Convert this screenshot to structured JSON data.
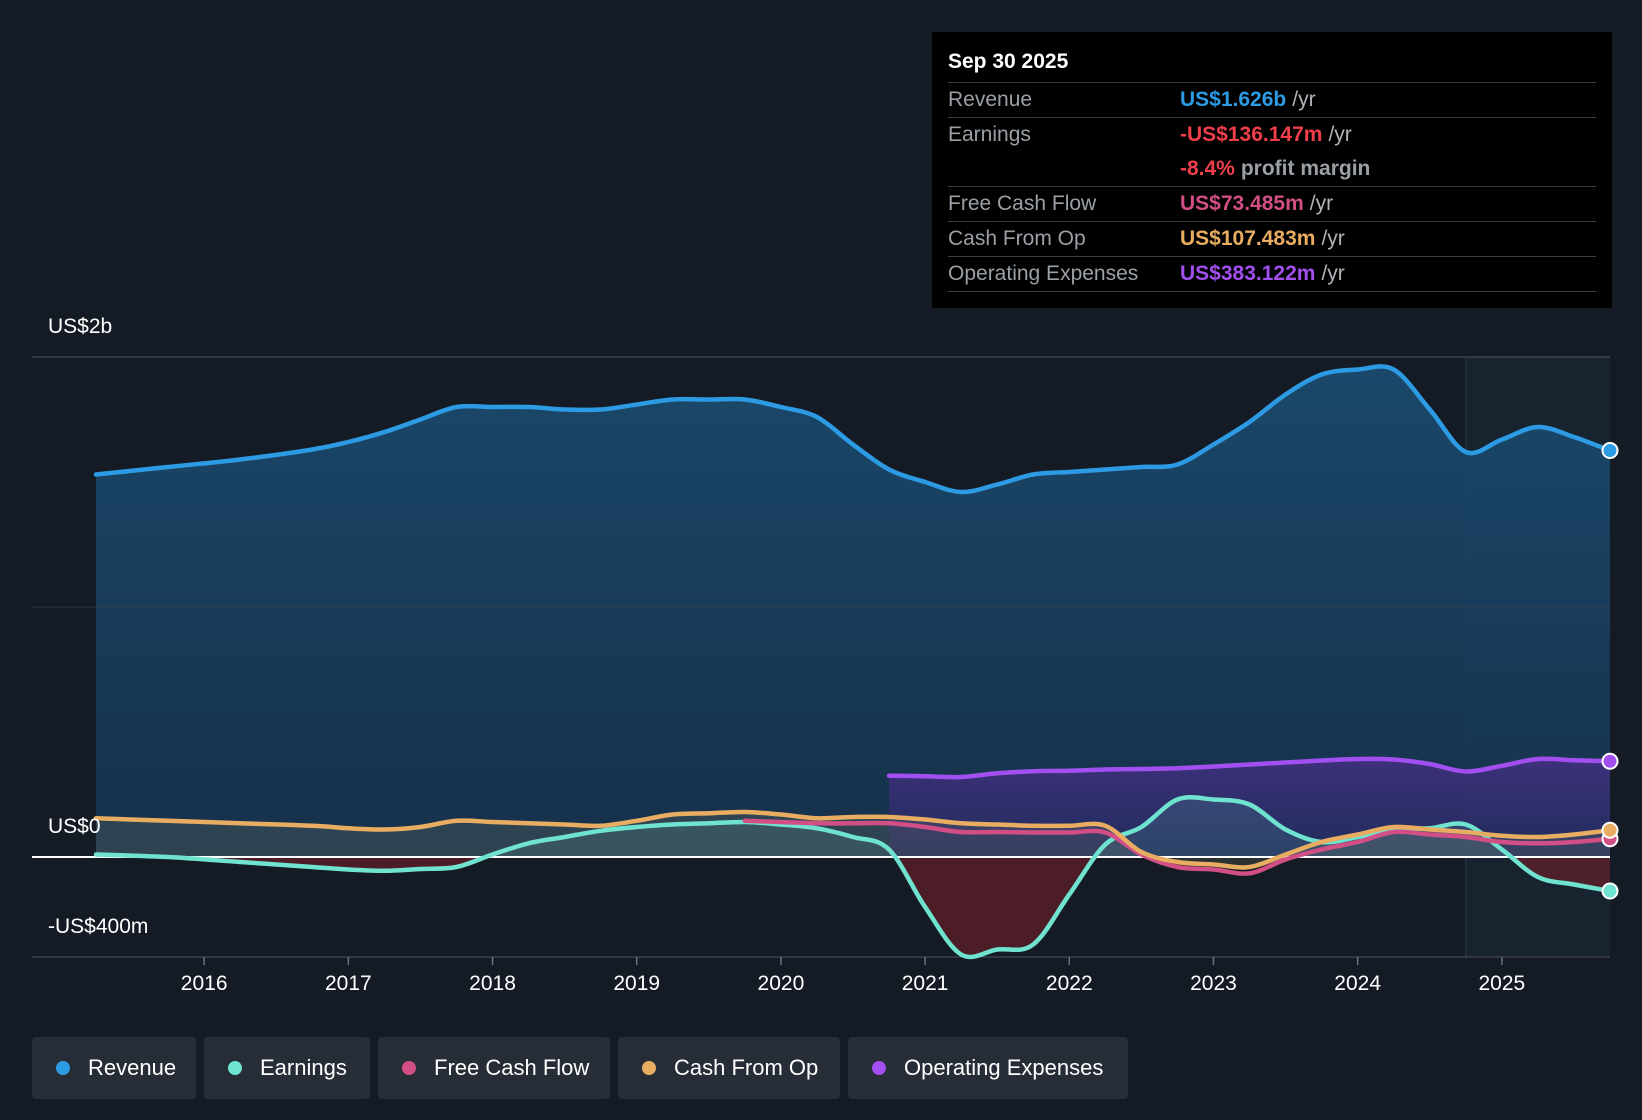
{
  "colors": {
    "revenue": "#2d9be4",
    "earnings": "#6fe3cf",
    "fcf": "#d24f86",
    "cfo": "#e9ad62",
    "opex": "#a24ff0",
    "negative": "#f03e4a"
  },
  "tooltip": {
    "date": "Sep 30 2025",
    "rows": [
      {
        "label": "Revenue",
        "value": "US$1.626b",
        "unit": "/yr"
      },
      {
        "label": "Earnings",
        "value": "-US$136.147m",
        "unit": "/yr"
      },
      {
        "label": "",
        "value": "-8.4%",
        "unit": "profit margin"
      },
      {
        "label": "Free Cash Flow",
        "value": "US$73.485m",
        "unit": "/yr"
      },
      {
        "label": "Cash From Op",
        "value": "US$107.483m",
        "unit": "/yr"
      },
      {
        "label": "Operating Expenses",
        "value": "US$383.122m",
        "unit": "/yr"
      }
    ]
  },
  "legend": [
    {
      "label": "Revenue",
      "icon": "revenue-dot-icon"
    },
    {
      "label": "Earnings",
      "icon": "earnings-dot-icon"
    },
    {
      "label": "Free Cash Flow",
      "icon": "fcf-dot-icon"
    },
    {
      "label": "Cash From Op",
      "icon": "cfo-dot-icon"
    },
    {
      "label": "Operating Expenses",
      "icon": "opex-dot-icon"
    }
  ],
  "chart_data": {
    "type": "line",
    "title": "",
    "y_unit": "US$ millions",
    "ylim": [
      -400,
      2000
    ],
    "xlim": [
      2015.25,
      2025.75
    ],
    "y_labels": [
      {
        "value": 2000,
        "text": "US$2b"
      },
      {
        "value": 0,
        "text": "US$0"
      },
      {
        "value": -400,
        "text": "-US$400m"
      }
    ],
    "x_ticks": [
      {
        "value": 2016,
        "text": "2016"
      },
      {
        "value": 2017,
        "text": "2017"
      },
      {
        "value": 2018,
        "text": "2018"
      },
      {
        "value": 2019,
        "text": "2019"
      },
      {
        "value": 2020,
        "text": "2020"
      },
      {
        "value": 2021,
        "text": "2021"
      },
      {
        "value": 2022,
        "text": "2022"
      },
      {
        "value": 2023,
        "text": "2023"
      },
      {
        "value": 2024,
        "text": "2024"
      },
      {
        "value": 2025,
        "text": "2025"
      }
    ],
    "highlight_start": 2024.75,
    "series": [
      {
        "name": "Revenue",
        "key": "revenue",
        "x": [
          2015.25,
          2015.75,
          2016.25,
          2016.75,
          2017.0,
          2017.25,
          2017.5,
          2017.75,
          2018.0,
          2018.25,
          2018.5,
          2018.75,
          2019.0,
          2019.25,
          2019.5,
          2019.75,
          2020.0,
          2020.25,
          2020.5,
          2020.75,
          2021.0,
          2021.25,
          2021.5,
          2021.75,
          2022.0,
          2022.25,
          2022.5,
          2022.75,
          2023.0,
          2023.25,
          2023.5,
          2023.75,
          2024.0,
          2024.25,
          2024.5,
          2024.75,
          2025.0,
          2025.25,
          2025.5,
          2025.75
        ],
        "values": [
          1530,
          1560,
          1590,
          1630,
          1660,
          1700,
          1750,
          1800,
          1800,
          1800,
          1790,
          1790,
          1810,
          1830,
          1830,
          1830,
          1800,
          1760,
          1650,
          1550,
          1500,
          1460,
          1490,
          1530,
          1540,
          1550,
          1560,
          1570,
          1650,
          1740,
          1850,
          1930,
          1950,
          1950,
          1790,
          1620,
          1670,
          1720,
          1680,
          1626
        ]
      },
      {
        "name": "Operating Expenses",
        "key": "opex",
        "x": [
          2020.75,
          2021.0,
          2021.25,
          2021.5,
          2021.75,
          2022.0,
          2022.25,
          2022.5,
          2022.75,
          2023.0,
          2023.25,
          2023.5,
          2023.75,
          2024.0,
          2024.25,
          2024.5,
          2024.75,
          2025.0,
          2025.25,
          2025.5,
          2025.75
        ],
        "values": [
          325,
          323,
          320,
          335,
          343,
          345,
          350,
          352,
          355,
          362,
          370,
          378,
          386,
          392,
          390,
          372,
          342,
          365,
          392,
          387,
          383
        ]
      },
      {
        "name": "Earnings",
        "key": "earnings",
        "x": [
          2015.25,
          2015.75,
          2016.25,
          2016.75,
          2017.0,
          2017.25,
          2017.5,
          2017.75,
          2018.0,
          2018.25,
          2018.5,
          2018.75,
          2019.0,
          2019.25,
          2019.5,
          2019.75,
          2020.0,
          2020.25,
          2020.5,
          2020.75,
          2021.0,
          2021.25,
          2021.5,
          2021.75,
          2022.0,
          2022.25,
          2022.5,
          2022.75,
          2023.0,
          2023.25,
          2023.5,
          2023.75,
          2024.0,
          2024.25,
          2024.5,
          2024.75,
          2025.0,
          2025.25,
          2025.5,
          2025.75
        ],
        "values": [
          10,
          0,
          -20,
          -40,
          -50,
          -55,
          -48,
          -40,
          10,
          55,
          80,
          105,
          120,
          130,
          135,
          140,
          130,
          115,
          80,
          30,
          -200,
          -390,
          -370,
          -350,
          -150,
          50,
          120,
          230,
          230,
          210,
          110,
          60,
          80,
          110,
          115,
          130,
          30,
          -80,
          -110,
          -136
        ]
      },
      {
        "name": "Free Cash Flow",
        "key": "fcf",
        "x": [
          2019.75,
          2020.0,
          2020.25,
          2020.5,
          2020.75,
          2021.0,
          2021.25,
          2021.5,
          2021.75,
          2022.0,
          2022.25,
          2022.5,
          2022.75,
          2023.0,
          2023.25,
          2023.5,
          2023.75,
          2024.0,
          2024.25,
          2024.5,
          2024.75,
          2025.0,
          2025.25,
          2025.5,
          2025.75
        ],
        "values": [
          145,
          140,
          135,
          135,
          135,
          120,
          100,
          100,
          98,
          98,
          98,
          10,
          -40,
          -50,
          -65,
          -10,
          30,
          60,
          100,
          90,
          80,
          60,
          55,
          60,
          73
        ]
      },
      {
        "name": "Cash From Op",
        "key": "cfo",
        "x": [
          2015.25,
          2015.75,
          2016.25,
          2016.75,
          2017.0,
          2017.25,
          2017.5,
          2017.75,
          2018.0,
          2018.25,
          2018.5,
          2018.75,
          2019.0,
          2019.25,
          2019.5,
          2019.75,
          2020.0,
          2020.25,
          2020.5,
          2020.75,
          2021.0,
          2021.25,
          2021.5,
          2021.75,
          2022.0,
          2022.25,
          2022.5,
          2022.75,
          2023.0,
          2023.25,
          2023.5,
          2023.75,
          2024.0,
          2024.25,
          2024.5,
          2024.75,
          2025.0,
          2025.25,
          2025.5,
          2025.75
        ],
        "values": [
          155,
          145,
          135,
          125,
          115,
          110,
          120,
          145,
          140,
          135,
          130,
          125,
          145,
          170,
          175,
          180,
          170,
          155,
          160,
          160,
          150,
          135,
          130,
          125,
          125,
          125,
          20,
          -20,
          -30,
          -40,
          10,
          60,
          90,
          120,
          110,
          100,
          85,
          80,
          90,
          107
        ]
      }
    ]
  }
}
